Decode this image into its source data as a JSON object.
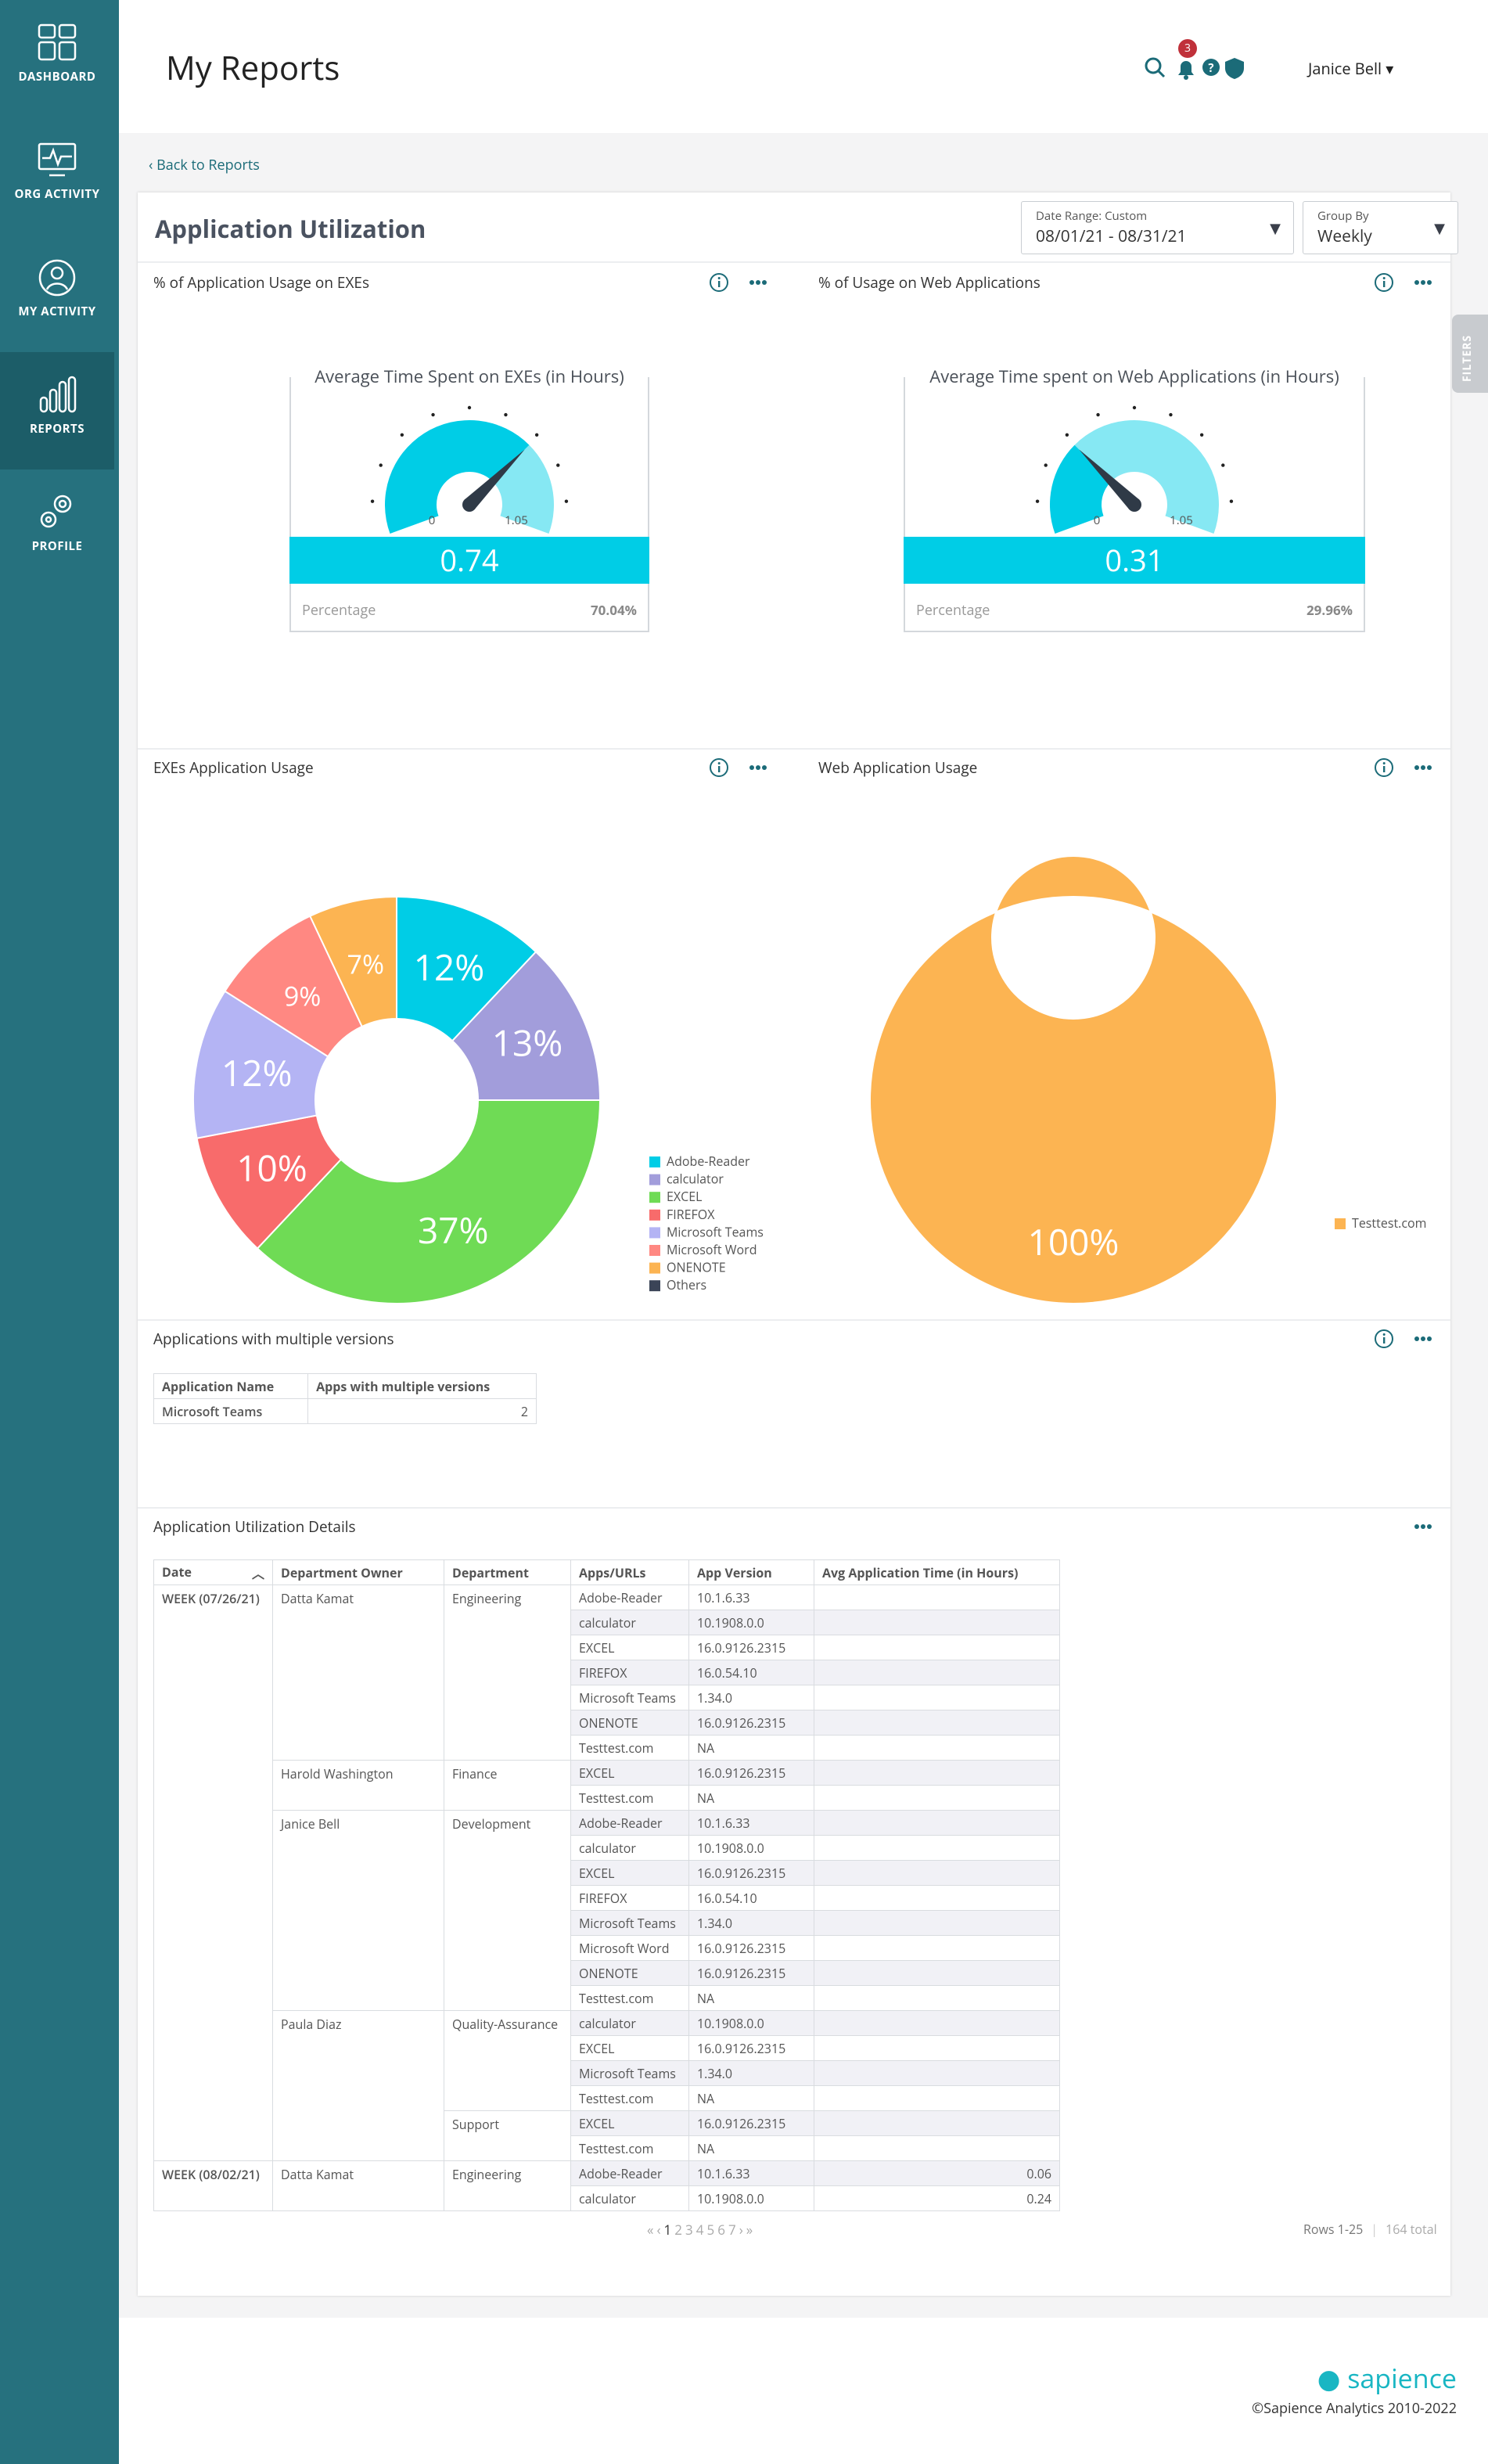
{
  "sidebar": [
    {
      "label": "DASHBOARD"
    },
    {
      "label": "ORG ACTIVITY"
    },
    {
      "label": "MY ACTIVITY"
    },
    {
      "label": "REPORTS"
    },
    {
      "label": "PROFILE"
    }
  ],
  "header": {
    "title": "My Reports",
    "notifications": 3,
    "user": "Janice Bell"
  },
  "back_link": "Back to Reports",
  "report": {
    "title": "Application Utilization",
    "date_range": {
      "label": "Date Range: Custom",
      "value": "08/01/21 - 08/31/21"
    },
    "group_by": {
      "label": "Group By",
      "value": "Weekly"
    }
  },
  "filters_tab": "FILTERS",
  "gauges": [
    {
      "panel_title": "% of Application Usage on EXEs",
      "title": "Average Time Spent on EXEs (in Hours)",
      "min": 0,
      "max": 1.05,
      "value": 0.74,
      "percentage_label": "Percentage",
      "percentage": "70.04%"
    },
    {
      "panel_title": "% of Usage on Web Applications",
      "title": "Average Time spent on Web Applications (in Hours)",
      "min": 0,
      "max": 1.05,
      "value": 0.31,
      "percentage_label": "Percentage",
      "percentage": "29.96%"
    }
  ],
  "pies": [
    {
      "type": "pie",
      "panel_title": "EXEs Application Usage",
      "categories": [
        "Adobe-Reader",
        "calculator",
        "EXCEL",
        "FIREFOX",
        "Microsoft Teams",
        "Microsoft Word",
        "ONENOTE",
        "Others"
      ],
      "values": [
        12,
        13,
        37,
        10,
        12,
        9,
        7,
        0
      ],
      "value_labels": [
        "12%",
        "13%",
        "37%",
        "10%",
        "12%",
        "9%",
        "7%",
        null
      ],
      "colors": [
        "#00cde6",
        "#a29ddb",
        "#6fdb55",
        "#f86b6b",
        "#b4b4f4",
        "#ff8882",
        "#fcb452",
        "#3b4457"
      ]
    },
    {
      "type": "pie",
      "panel_title": "Web Application Usage",
      "categories": [
        "Testtest.com"
      ],
      "values": [
        100
      ],
      "value_labels": [
        "100%"
      ],
      "colors": [
        "#fcb452"
      ]
    }
  ],
  "versions": {
    "title": "Applications with multiple versions",
    "columns": [
      "Application Name",
      "Apps with multiple versions"
    ],
    "rows": [
      [
        "Microsoft Teams",
        2
      ]
    ]
  },
  "details": {
    "title": "Application Utilization Details",
    "columns": [
      "Date",
      "Department Owner",
      "Department",
      "Apps/URLs",
      "App Version",
      "Avg Application Time (in Hours)"
    ],
    "weeks": [
      {
        "date": "WEEK (07/26/21)",
        "owners": [
          {
            "owner": "Datta Kamat",
            "departments": [
              {
                "department": "Engineering",
                "apps": [
                  [
                    "Adobe-Reader",
                    "10.1.6.33",
                    null
                  ],
                  [
                    "calculator",
                    "10.1908.0.0",
                    null
                  ],
                  [
                    "EXCEL",
                    "16.0.9126.2315",
                    null
                  ],
                  [
                    "FIREFOX",
                    "16.0.54.10",
                    null
                  ],
                  [
                    "Microsoft Teams",
                    "1.34.0",
                    null
                  ],
                  [
                    "ONENOTE",
                    "16.0.9126.2315",
                    null
                  ],
                  [
                    "Testtest.com",
                    "NA",
                    null
                  ]
                ]
              }
            ]
          },
          {
            "owner": "Harold Washington",
            "departments": [
              {
                "department": "Finance",
                "apps": [
                  [
                    "EXCEL",
                    "16.0.9126.2315",
                    null
                  ],
                  [
                    "Testtest.com",
                    "NA",
                    null
                  ]
                ]
              }
            ]
          },
          {
            "owner": "Janice Bell",
            "departments": [
              {
                "department": "Development",
                "apps": [
                  [
                    "Adobe-Reader",
                    "10.1.6.33",
                    null
                  ],
                  [
                    "calculator",
                    "10.1908.0.0",
                    null
                  ],
                  [
                    "EXCEL",
                    "16.0.9126.2315",
                    null
                  ],
                  [
                    "FIREFOX",
                    "16.0.54.10",
                    null
                  ],
                  [
                    "Microsoft Teams",
                    "1.34.0",
                    null
                  ],
                  [
                    "Microsoft Word",
                    "16.0.9126.2315",
                    null
                  ],
                  [
                    "ONENOTE",
                    "16.0.9126.2315",
                    null
                  ],
                  [
                    "Testtest.com",
                    "NA",
                    null
                  ]
                ]
              }
            ]
          },
          {
            "owner": "Paula Diaz",
            "departments": [
              {
                "department": "Quality-Assurance",
                "apps": [
                  [
                    "calculator",
                    "10.1908.0.0",
                    null
                  ],
                  [
                    "EXCEL",
                    "16.0.9126.2315",
                    null
                  ],
                  [
                    "Microsoft Teams",
                    "1.34.0",
                    null
                  ],
                  [
                    "Testtest.com",
                    "NA",
                    null
                  ]
                ]
              },
              {
                "department": "Support",
                "apps": [
                  [
                    "EXCEL",
                    "16.0.9126.2315",
                    null
                  ],
                  [
                    "Testtest.com",
                    "NA",
                    null
                  ]
                ]
              }
            ]
          }
        ]
      },
      {
        "date": "WEEK (08/02/21)",
        "owners": [
          {
            "owner": "Datta Kamat",
            "departments": [
              {
                "department": "Engineering",
                "apps": [
                  [
                    "Adobe-Reader",
                    "10.1.6.33",
                    0.06
                  ],
                  [
                    "calculator",
                    "10.1908.0.0",
                    0.24
                  ]
                ]
              }
            ]
          }
        ]
      }
    ],
    "pagination": {
      "first": "«",
      "prev": "‹",
      "pages": [
        1,
        2,
        3,
        4,
        5,
        6,
        7
      ],
      "next": "›",
      "last": "»",
      "rows": "Rows 1-25",
      "total": "164 total"
    }
  },
  "footer": {
    "brand": "sapience",
    "copyright": "©Sapience Analytics 2010-2022"
  }
}
